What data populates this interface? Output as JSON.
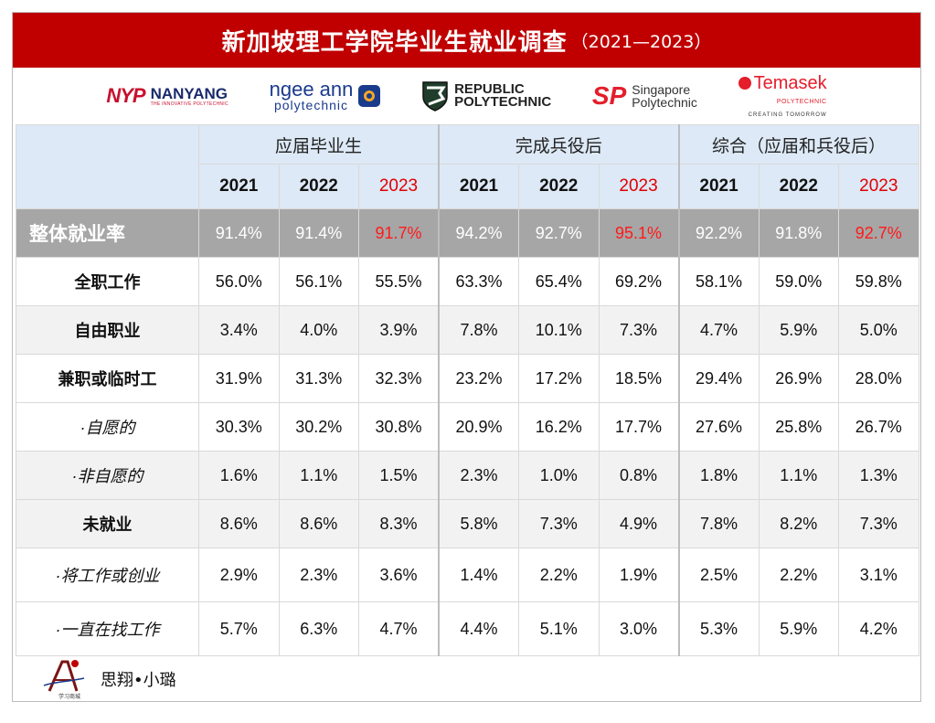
{
  "title": {
    "main": "新加坡理工学院毕业生就业调查",
    "years": "（2021—2023）"
  },
  "logos": {
    "nyp": {
      "mark": "NYP",
      "name": "NANYANG",
      "tag": "THE INNOVATIVE POLYTECHNIC"
    },
    "ngee": {
      "name": "ngee ann",
      "sub": "polytechnic"
    },
    "rp": {
      "line1": "REPUBLIC",
      "line2": "POLYTECHNIC"
    },
    "sp": {
      "mark": "SP",
      "line1": "Singapore",
      "line2": "Polytechnic"
    },
    "tp": {
      "name": "Temasek",
      "sub": "POLYTECHNIC",
      "tag": "CREATING TOMORROW"
    }
  },
  "groups": [
    "应届毕业生",
    "完成兵役后",
    "综合（应届和兵役后）"
  ],
  "years": [
    "2021",
    "2022",
    "2023"
  ],
  "rows": [
    {
      "label": "整体就业率",
      "values": [
        "91.4%",
        "91.4%",
        "91.7%",
        "94.2%",
        "92.7%",
        "95.1%",
        "92.2%",
        "91.8%",
        "92.7%"
      ]
    },
    {
      "label": "全职工作",
      "values": [
        "56.0%",
        "56.1%",
        "55.5%",
        "63.3%",
        "65.4%",
        "69.2%",
        "58.1%",
        "59.0%",
        "59.8%"
      ]
    },
    {
      "label": "自由职业",
      "values": [
        "3.4%",
        "4.0%",
        "3.9%",
        "7.8%",
        "10.1%",
        "7.3%",
        "4.7%",
        "5.9%",
        "5.0%"
      ]
    },
    {
      "label": "兼职或临时工",
      "values": [
        "31.9%",
        "31.3%",
        "32.3%",
        "23.2%",
        "17.2%",
        "18.5%",
        "29.4%",
        "26.9%",
        "28.0%"
      ]
    },
    {
      "label": "·自愿的",
      "values": [
        "30.3%",
        "30.2%",
        "30.8%",
        "20.9%",
        "16.2%",
        "17.7%",
        "27.6%",
        "25.8%",
        "26.7%"
      ]
    },
    {
      "label": "·非自愿的",
      "values": [
        "1.6%",
        "1.1%",
        "1.5%",
        "2.3%",
        "1.0%",
        "0.8%",
        "1.8%",
        "1.1%",
        "1.3%"
      ]
    },
    {
      "label": "未就业",
      "values": [
        "8.6%",
        "8.6%",
        "8.3%",
        "5.8%",
        "7.3%",
        "4.9%",
        "7.8%",
        "8.2%",
        "7.3%"
      ]
    },
    {
      "label": "·将工作或创业",
      "values": [
        "2.9%",
        "2.3%",
        "3.6%",
        "1.4%",
        "2.2%",
        "1.9%",
        "2.5%",
        "2.2%",
        "3.1%"
      ]
    },
    {
      "label": "·一直在找工作",
      "values": [
        "5.7%",
        "6.3%",
        "4.7%",
        "4.4%",
        "5.1%",
        "3.0%",
        "5.3%",
        "5.9%",
        "4.2%"
      ]
    }
  ],
  "footer": {
    "text": "思翔•小璐",
    "logo_sub": "学习商城"
  },
  "colors": {
    "title_bg": "#c00000",
    "header_bg": "#dde9f6",
    "overall_bg": "#a6a6a6",
    "highlight": "#e00000"
  }
}
